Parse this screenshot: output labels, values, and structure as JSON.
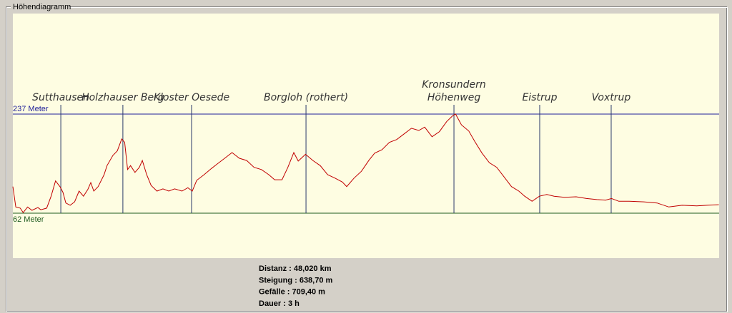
{
  "group_title": "Höhendiagramm",
  "chart_data": {
    "type": "line",
    "x": [
      0.0,
      0.2,
      0.5,
      0.7,
      1.0,
      1.3,
      1.7,
      1.9,
      2.3,
      2.6,
      2.9,
      3.2,
      3.4,
      3.6,
      3.9,
      4.2,
      4.5,
      4.8,
      5.1,
      5.3,
      5.5,
      5.8,
      6.2,
      6.4,
      6.8,
      7.1,
      7.4,
      7.6,
      7.8,
      8.0,
      8.3,
      8.6,
      8.8,
      9.1,
      9.4,
      9.8,
      10.2,
      10.6,
      11.0,
      11.5,
      11.9,
      12.2,
      12.5,
      13.0,
      13.5,
      13.9,
      14.4,
      14.9,
      15.4,
      15.9,
      16.4,
      16.9,
      17.4,
      17.8,
      18.3,
      18.7,
      19.1,
      19.4,
      19.9,
      20.4,
      20.9,
      21.4,
      21.9,
      22.4,
      22.7,
      23.2,
      23.7,
      24.2,
      24.6,
      25.1,
      25.6,
      26.1,
      26.6,
      27.1,
      27.6,
      28.0,
      28.5,
      29.0,
      29.5,
      29.9,
      30.1,
      30.5,
      31.0,
      31.4,
      31.9,
      32.4,
      32.9,
      33.4,
      33.9,
      34.4,
      34.8,
      35.3,
      35.8,
      36.3,
      36.8,
      37.5,
      38.3,
      39.0,
      39.7,
      40.3,
      40.7,
      41.2,
      41.9,
      42.9,
      43.8,
      44.6,
      45.5,
      46.5,
      47.2,
      48.0
    ],
    "series": [
      {
        "color": "#c00000",
        "values": [
          109,
          73,
          71,
          63,
          73,
          67,
          72,
          68,
          71,
          92,
          119,
          109,
          99,
          80,
          76,
          82,
          101,
          92,
          104,
          116,
          101,
          109,
          130,
          146,
          164,
          172,
          193,
          187,
          139,
          146,
          134,
          143,
          155,
          130,
          111,
          101,
          105,
          101,
          105,
          101,
          107,
          101,
          120,
          130,
          141,
          149,
          159,
          169,
          159,
          155,
          143,
          139,
          130,
          121,
          121,
          143,
          169,
          154,
          166,
          155,
          146,
          130,
          124,
          117,
          109,
          124,
          136,
          155,
          168,
          174,
          187,
          192,
          202,
          212,
          208,
          214,
          197,
          206,
          224,
          234,
          237,
          218,
          207,
          189,
          168,
          151,
          143,
          126,
          109,
          101,
          92,
          83,
          92,
          95,
          92,
          90,
          91,
          88,
          86,
          85,
          88,
          83,
          83,
          82,
          80,
          73,
          76,
          75,
          76,
          77
        ]
      }
    ],
    "xlim": [
      0,
      48.02
    ],
    "ylim": [
      -17.3,
      414.5
    ],
    "yticks": [
      {
        "value": 62,
        "label": "62 Meter"
      },
      {
        "value": 237,
        "label": "237 Meter"
      }
    ],
    "ytick_colors": [
      "#1e5a1e",
      "#1f1f9a"
    ],
    "waypoints": [
      {
        "label": [
          "Sutthausen"
        ],
        "x": 3.26
      },
      {
        "label": [
          "Holzhauser Berg"
        ],
        "x": 7.48
      },
      {
        "label": [
          "Kloster Oesede"
        ],
        "x": 12.15
      },
      {
        "label": [
          "Borgloh (rothert)"
        ],
        "x": 19.93
      },
      {
        "label": [
          "Kronsundern",
          "Höhenweg"
        ],
        "x": 29.99
      },
      {
        "label": [
          "Eistrup"
        ],
        "x": 35.82
      },
      {
        "label": [
          "Voxtrup"
        ],
        "x": 40.68
      }
    ]
  },
  "stats": [
    "Distanz : 48,020 km",
    "Steigung : 638,70 m",
    "Gefälle : 709,40 m",
    "Dauer : 3 h"
  ]
}
